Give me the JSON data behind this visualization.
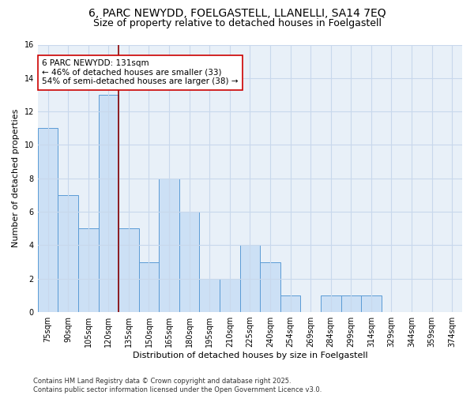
{
  "title_line1": "6, PARC NEWYDD, FOELGASTELL, LLANELLI, SA14 7EQ",
  "title_line2": "Size of property relative to detached houses in Foelgastell",
  "xlabel": "Distribution of detached houses by size in Foelgastell",
  "ylabel": "Number of detached properties",
  "bar_labels": [
    "75sqm",
    "90sqm",
    "105sqm",
    "120sqm",
    "135sqm",
    "150sqm",
    "165sqm",
    "180sqm",
    "195sqm",
    "210sqm",
    "225sqm",
    "240sqm",
    "254sqm",
    "269sqm",
    "284sqm",
    "299sqm",
    "314sqm",
    "329sqm",
    "344sqm",
    "359sqm",
    "374sqm"
  ],
  "bar_values": [
    11,
    7,
    5,
    13,
    5,
    3,
    8,
    6,
    2,
    2,
    4,
    3,
    1,
    0,
    1,
    1,
    1,
    0,
    0,
    0,
    0
  ],
  "bar_color": "#cce0f5",
  "bar_edgecolor": "#5b9bd5",
  "vline_index": 4,
  "annotation_text_line1": "6 PARC NEWYDD: 131sqm",
  "annotation_text_line2": "← 46% of detached houses are smaller (33)",
  "annotation_text_line3": "54% of semi-detached houses are larger (38) →",
  "vline_color": "#8b0000",
  "annotation_box_edgecolor": "#cc0000",
  "ylim": [
    0,
    16
  ],
  "yticks": [
    0,
    2,
    4,
    6,
    8,
    10,
    12,
    14,
    16
  ],
  "grid_color": "#c8d8ec",
  "bg_color": "#e8f0f8",
  "footer_text": "Contains HM Land Registry data © Crown copyright and database right 2025.\nContains public sector information licensed under the Open Government Licence v3.0.",
  "title_fontsize": 10,
  "subtitle_fontsize": 9,
  "tick_fontsize": 7,
  "ylabel_fontsize": 8,
  "xlabel_fontsize": 8,
  "annotation_fontsize": 7.5,
  "footer_fontsize": 6
}
